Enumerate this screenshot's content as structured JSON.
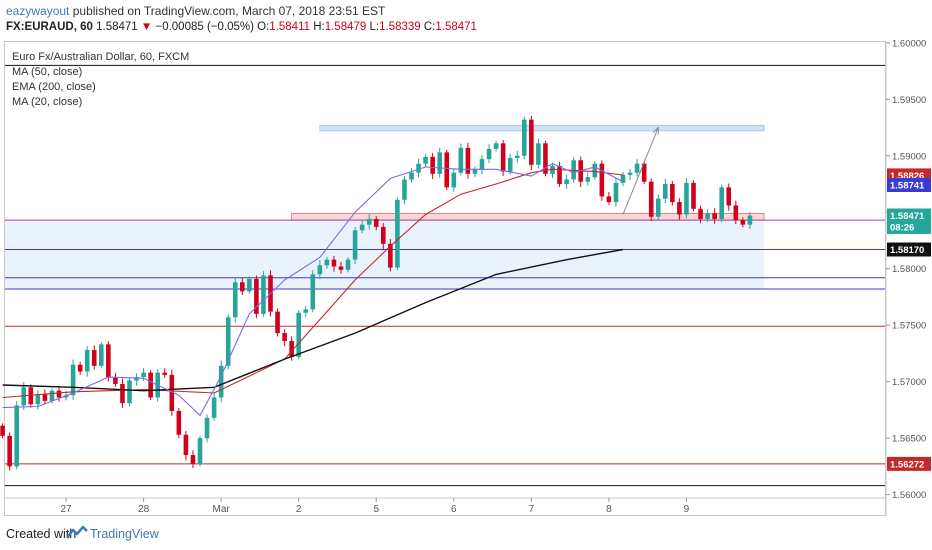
{
  "header": {
    "author": "eazywayout",
    "published_text": "published on TradingView.com, March 07, 2018 23:51 EST",
    "symbol": "FX:EURAUD, 60",
    "last": "1.58471",
    "change_arrow": "▼",
    "change": "−0.00085 (−0.05%)",
    "open_label": "O:",
    "open": "1.58411",
    "high_label": "H:",
    "high": "1.58479",
    "low_label": "L:",
    "low": "1.58339",
    "close_label": "C:",
    "close": "1.58471"
  },
  "legend": {
    "title": "Euro Fx/Australian Dollar, 60, FXCM",
    "ma50": "MA (50, close)",
    "ema200": "EMA (200, close)",
    "ma20": "MA (20, close)"
  },
  "footer": {
    "created": "Created with",
    "brand": "TradingView"
  },
  "colors": {
    "up": "#26a69a",
    "down": "#d0021b",
    "ma50": "#c62828",
    "ema200": "#111111",
    "ma20": "#7b68ee",
    "hline_blue": "#3a3ad6",
    "hline_red": "#c62828",
    "hline_magenta": "#b03ab0",
    "zone_blue": "#cfe2f6",
    "zone_red": "#f8d7d7"
  },
  "chart_data": {
    "type": "candlestick",
    "instrument": "Euro Fx/Australian Dollar, 60, FXCM",
    "ylim": [
      1.5597,
      1.5983
    ],
    "xlim": [
      0,
      108
    ],
    "y_ticks": [
      "1.60000",
      "1.59500",
      "1.59000",
      "1.58500",
      "1.58000",
      "1.57500",
      "1.57000",
      "1.56500",
      "1.56000"
    ],
    "y_tick_values": [
      1.6,
      1.595,
      1.59,
      1.585,
      1.58,
      1.575,
      1.57,
      1.565,
      1.56
    ],
    "x_ticks": [
      {
        "label": "27",
        "pos": 9
      },
      {
        "label": "28",
        "pos": 20
      },
      {
        "label": "Mar",
        "pos": 31
      },
      {
        "label": "2",
        "pos": 42
      },
      {
        "label": "5",
        "pos": 53
      },
      {
        "label": "6",
        "pos": 64
      },
      {
        "label": "7",
        "pos": 75
      },
      {
        "label": "8",
        "pos": 86
      },
      {
        "label": "9",
        "pos": 97
      }
    ],
    "price_labels": [
      {
        "value": 1.58826,
        "text": "1.58826",
        "color": "#c62828"
      },
      {
        "value": 1.58741,
        "text": "1.58741",
        "color": "#3a3ad6"
      },
      {
        "value": 1.58471,
        "text": "1.58471",
        "color": "#26a69a"
      },
      {
        "value": 1.5837,
        "text": "08:26",
        "color": "#26a69a"
      },
      {
        "value": 1.5817,
        "text": "1.58170",
        "color": "#111111"
      },
      {
        "value": 1.56272,
        "text": "1.56272",
        "color": "#c62828"
      }
    ],
    "horizontal_lines": [
      {
        "value": 1.5843,
        "color": "#b03ab0"
      },
      {
        "value": 1.5817,
        "color": "#3a3ad6"
      },
      {
        "value": 1.5792,
        "color": "#3a3ad6"
      },
      {
        "value": 1.5782,
        "color": "#3a3ad6"
      },
      {
        "value": 1.5749,
        "color": "#c62828"
      },
      {
        "value": 1.56272,
        "color": "#c62828"
      },
      {
        "value": 1.5608,
        "color": "#111111"
      },
      {
        "value": 1.598,
        "color": "#111111"
      }
    ],
    "zones": [
      {
        "x0": 0,
        "x1": 108,
        "y0": 1.5782,
        "y1": 1.5843,
        "color": "#eaf2fb"
      },
      {
        "x0": 45,
        "x1": 108,
        "y0": 1.5922,
        "y1": 1.5927,
        "color": "#cfe2f6"
      },
      {
        "x0": 41,
        "x1": 108,
        "y0": 1.5843,
        "y1": 1.5849,
        "color": "#f8d7d7"
      }
    ],
    "arrow": {
      "from": [
        88,
        1.5848
      ],
      "to": [
        93,
        1.5925
      ]
    },
    "candles": [
      [
        1.5661,
        1.5652
      ],
      [
        1.5652,
        1.5625
      ],
      [
        1.5625,
        1.5679
      ],
      [
        1.5679,
        1.5695
      ],
      [
        1.5695,
        1.568
      ],
      [
        1.568,
        1.5689
      ],
      [
        1.5689,
        1.5683
      ],
      [
        1.5683,
        1.5692
      ],
      [
        1.5692,
        1.5686
      ],
      [
        1.5686,
        1.5688
      ],
      [
        1.5688,
        1.5715
      ],
      [
        1.5715,
        1.5709
      ],
      [
        1.5709,
        1.5728
      ],
      [
        1.5728,
        1.5714
      ],
      [
        1.5714,
        1.5733
      ],
      [
        1.5733,
        1.5704
      ],
      [
        1.5704,
        1.5698
      ],
      [
        1.5698,
        1.5681
      ],
      [
        1.5681,
        1.5701
      ],
      [
        1.5701,
        1.5704
      ],
      [
        1.5704,
        1.5708
      ],
      [
        1.5708,
        1.5686
      ],
      [
        1.5686,
        1.5708
      ],
      [
        1.5708,
        1.5706
      ],
      [
        1.5706,
        1.5674
      ],
      [
        1.5674,
        1.5653
      ],
      [
        1.5653,
        1.5635
      ],
      [
        1.5635,
        1.5627
      ],
      [
        1.5627,
        1.565
      ],
      [
        1.565,
        1.5668
      ],
      [
        1.5668,
        1.5686
      ],
      [
        1.5686,
        1.5714
      ],
      [
        1.5714,
        1.5757
      ],
      [
        1.5757,
        1.5788
      ],
      [
        1.5788,
        1.578
      ],
      [
        1.578,
        1.5791
      ],
      [
        1.5791,
        1.576
      ],
      [
        1.576,
        1.5794
      ],
      [
        1.5794,
        1.5762
      ],
      [
        1.5762,
        1.5743
      ],
      [
        1.5743,
        1.5736
      ],
      [
        1.5736,
        1.5722
      ],
      [
        1.5722,
        1.5761
      ],
      [
        1.5761,
        1.5764
      ],
      [
        1.5764,
        1.5795
      ],
      [
        1.5795,
        1.5803
      ],
      [
        1.5803,
        1.5808
      ],
      [
        1.5808,
        1.5802
      ],
      [
        1.5802,
        1.5799
      ],
      [
        1.5799,
        1.5808
      ],
      [
        1.5808,
        1.5834
      ],
      [
        1.5834,
        1.5839
      ],
      [
        1.5839,
        1.5844
      ],
      [
        1.5844,
        1.5837
      ],
      [
        1.5837,
        1.5822
      ],
      [
        1.5822,
        1.5801
      ],
      [
        1.5801,
        1.5861
      ],
      [
        1.5861,
        1.5879
      ],
      [
        1.5879,
        1.5885
      ],
      [
        1.5885,
        1.5893
      ],
      [
        1.5893,
        1.5899
      ],
      [
        1.5899,
        1.5884
      ],
      [
        1.5884,
        1.5903
      ],
      [
        1.5903,
        1.5872
      ],
      [
        1.5872,
        1.5885
      ],
      [
        1.5885,
        1.5907
      ],
      [
        1.5907,
        1.5884
      ],
      [
        1.5884,
        1.5888
      ],
      [
        1.5888,
        1.5897
      ],
      [
        1.5897,
        1.5906
      ],
      [
        1.5906,
        1.5911
      ],
      [
        1.5911,
        1.5886
      ],
      [
        1.5886,
        1.5898
      ],
      [
        1.5898,
        1.59
      ],
      [
        1.59,
        1.5932
      ],
      [
        1.5932,
        1.5892
      ],
      [
        1.5892,
        1.5911
      ],
      [
        1.5911,
        1.5884
      ],
      [
        1.5884,
        1.5891
      ],
      [
        1.5891,
        1.5875
      ],
      [
        1.5875,
        1.5879
      ],
      [
        1.5879,
        1.5896
      ],
      [
        1.5896,
        1.5877
      ],
      [
        1.5877,
        1.5881
      ],
      [
        1.5881,
        1.5893
      ],
      [
        1.5893,
        1.5864
      ],
      [
        1.5864,
        1.5859
      ],
      [
        1.5859,
        1.5876
      ],
      [
        1.5876,
        1.5883
      ],
      [
        1.5883,
        1.5885
      ],
      [
        1.5885,
        1.5893
      ],
      [
        1.5893,
        1.5877
      ],
      [
        1.5877,
        1.5846
      ],
      [
        1.5846,
        1.5862
      ],
      [
        1.5862,
        1.5875
      ],
      [
        1.5875,
        1.5859
      ],
      [
        1.5859,
        1.5848
      ],
      [
        1.5848,
        1.5876
      ],
      [
        1.5876,
        1.5853
      ],
      [
        1.5853,
        1.5844
      ],
      [
        1.5844,
        1.5849
      ],
      [
        1.5849,
        1.5844
      ],
      [
        1.5844,
        1.5872
      ],
      [
        1.5872,
        1.5856
      ],
      [
        1.5856,
        1.5843
      ],
      [
        1.5843,
        1.5839
      ],
      [
        1.5839,
        1.5847
      ]
    ],
    "series": [
      {
        "name": "MA (50, close)",
        "x": [
          0,
          10,
          20,
          30,
          40,
          45,
          50,
          55,
          60,
          65,
          70,
          75,
          78,
          81,
          84,
          88
        ],
        "values": [
          1.5686,
          1.5691,
          1.5693,
          1.569,
          1.572,
          1.5755,
          1.579,
          1.582,
          1.5848,
          1.5866,
          1.5875,
          1.5885,
          1.5888,
          1.5887,
          1.5886,
          1.5883
        ]
      },
      {
        "name": "EMA (200, close)",
        "x": [
          0,
          10,
          20,
          30,
          40,
          50,
          60,
          70,
          80,
          88
        ],
        "values": [
          1.5697,
          1.5695,
          1.5692,
          1.5695,
          1.572,
          1.5743,
          1.577,
          1.5795,
          1.5808,
          1.5817
        ]
      },
      {
        "name": "MA (20, close)",
        "x": [
          0,
          5,
          10,
          15,
          20,
          25,
          28,
          31,
          35,
          40,
          45,
          50,
          55,
          60,
          65,
          70,
          75,
          78,
          81,
          84,
          88
        ],
        "values": [
          1.5677,
          1.5678,
          1.569,
          1.5704,
          1.5703,
          1.5688,
          1.567,
          1.5705,
          1.576,
          1.579,
          1.581,
          1.585,
          1.588,
          1.589,
          1.5888,
          1.5888,
          1.5882,
          1.5893,
          1.5885,
          1.589,
          1.5877
        ]
      }
    ]
  }
}
